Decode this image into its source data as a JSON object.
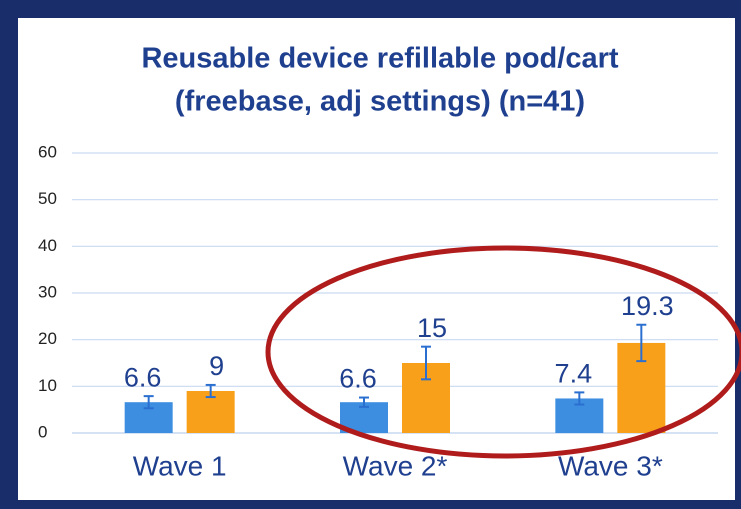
{
  "chart_data": {
    "type": "bar",
    "title": [
      "Reusable device refillable pod/cart",
      "(freebase, adj settings) (n=41)"
    ],
    "categories": [
      "Wave 1",
      "Wave 2*",
      "Wave 3*"
    ],
    "series": [
      {
        "color": "#3d8ee0",
        "values": [
          6.6,
          6.6,
          7.4
        ],
        "errors": [
          1.3,
          1,
          1.3
        ]
      },
      {
        "color": "#f9a01b",
        "values": [
          9,
          15,
          19.3
        ],
        "errors": [
          1.3,
          3.5,
          3.9
        ]
      }
    ],
    "ylim": [
      0,
      60
    ],
    "yticks": [
      0,
      10,
      20,
      30,
      40,
      50,
      60
    ],
    "grid": true
  }
}
